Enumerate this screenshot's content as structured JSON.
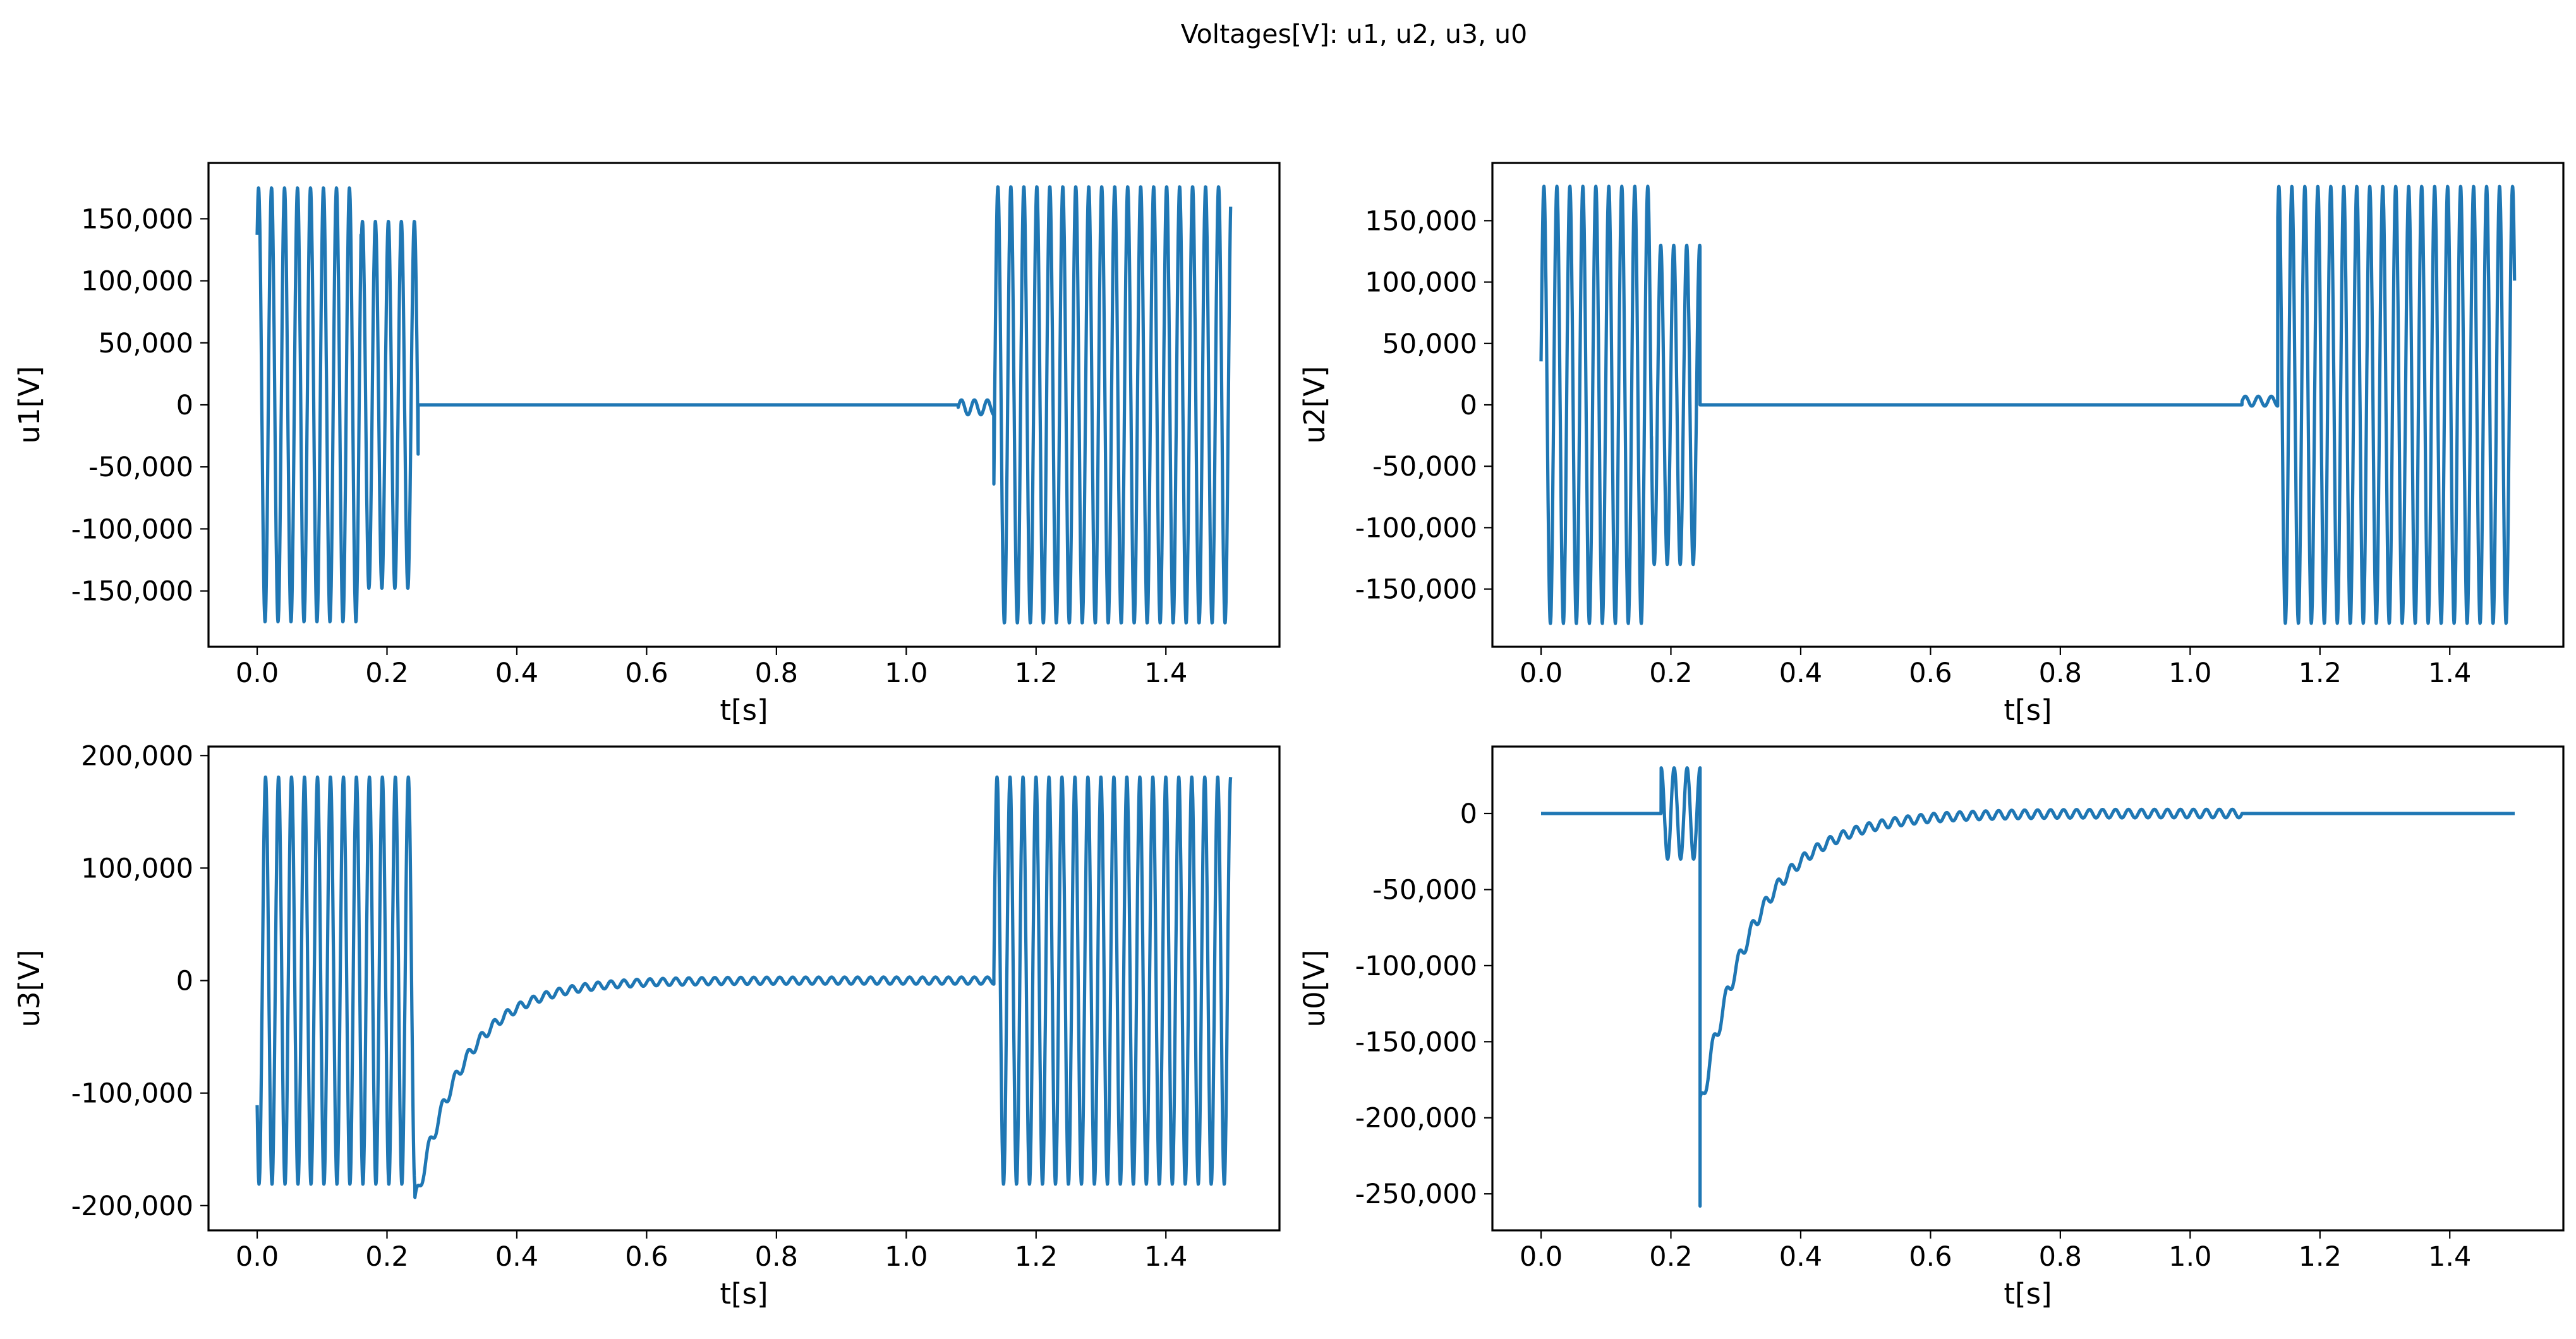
{
  "figure": {
    "suptitle": "Voltages[V]: u1, u2, u3, u0",
    "line_color": "#1f77b4"
  },
  "chart_data": [
    {
      "type": "line",
      "id": "u1",
      "xlabel": "t[s]",
      "ylabel": "u1[V]",
      "xlim": [
        -0.075,
        1.575
      ],
      "ylim": [
        -195000,
        195000
      ],
      "xticks": [
        0.0,
        0.2,
        0.4,
        0.6,
        0.8,
        1.0,
        1.2,
        1.4
      ],
      "xtick_labels": [
        "0.0",
        "0.2",
        "0.4",
        "0.6",
        "0.8",
        "1.0",
        "1.2",
        "1.4"
      ],
      "yticks": [
        150000,
        100000,
        50000,
        0,
        -50000,
        -100000,
        -150000
      ],
      "ytick_labels": [
        "150,000",
        "100,000",
        "50,000",
        "0",
        "-50,000",
        "-100,000",
        "-150,000"
      ],
      "series": [
        {
          "name": "u1",
          "segments": [
            {
              "kind": "sine",
              "t0": 0.0,
              "t1": 0.16,
              "amp": 175000,
              "freq": 50,
              "phase": 0.9,
              "center": 0
            },
            {
              "kind": "sine",
              "t0": 0.16,
              "t1": 0.248,
              "amp": 148000,
              "freq": 50,
              "phase": 0.9,
              "center": 0
            },
            {
              "kind": "const",
              "t0": 0.248,
              "t1": 1.08,
              "value": 0
            },
            {
              "kind": "sine",
              "t0": 1.08,
              "t1": 1.135,
              "amp": 6000,
              "freq": 50,
              "phase": 0.0,
              "center": -2000
            },
            {
              "kind": "sine",
              "t0": 1.135,
              "t1": 1.5,
              "amp": 176000,
              "freq": 50,
              "phase": 1.2,
              "center": 0
            }
          ]
        }
      ]
    },
    {
      "type": "line",
      "id": "u2",
      "xlabel": "t[s]",
      "ylabel": "u2[V]",
      "xlim": [
        -0.075,
        1.575
      ],
      "ylim": [
        -197000,
        197000
      ],
      "xticks": [
        0.0,
        0.2,
        0.4,
        0.6,
        0.8,
        1.0,
        1.2,
        1.4
      ],
      "xtick_labels": [
        "0.0",
        "0.2",
        "0.4",
        "0.6",
        "0.8",
        "1.0",
        "1.2",
        "1.4"
      ],
      "yticks": [
        150000,
        100000,
        50000,
        0,
        -50000,
        -100000,
        -150000
      ],
      "ytick_labels": [
        "150,000",
        "100,000",
        "50,000",
        "0",
        "-50,000",
        "-100,000",
        "-150,000"
      ],
      "series": [
        {
          "name": "u2",
          "segments": [
            {
              "kind": "sine",
              "t0": 0.0,
              "t1": 0.17,
              "amp": 178000,
              "freq": 50,
              "phase": 0.2,
              "center": 0
            },
            {
              "kind": "sine",
              "t0": 0.17,
              "t1": 0.245,
              "amp": 130000,
              "freq": 50,
              "phase": 0.2,
              "center": 0
            },
            {
              "kind": "const",
              "t0": 0.245,
              "t1": 1.08,
              "value": 0
            },
            {
              "kind": "sine",
              "t0": 1.08,
              "t1": 1.135,
              "amp": 4000,
              "freq": 50,
              "phase": 0.0,
              "center": 3000
            },
            {
              "kind": "sine",
              "t0": 1.135,
              "t1": 1.5,
              "amp": 178000,
              "freq": 50,
              "phase": 2.6,
              "center": 0
            }
          ]
        }
      ]
    },
    {
      "type": "line",
      "id": "u3",
      "xlabel": "t[s]",
      "ylabel": "u3[V]",
      "xlim": [
        -0.075,
        1.575
      ],
      "ylim": [
        -222000,
        208000
      ],
      "xticks": [
        0.0,
        0.2,
        0.4,
        0.6,
        0.8,
        1.0,
        1.2,
        1.4
      ],
      "xtick_labels": [
        "0.0",
        "0.2",
        "0.4",
        "0.6",
        "0.8",
        "1.0",
        "1.2",
        "1.4"
      ],
      "yticks": [
        200000,
        100000,
        0,
        -100000,
        -200000
      ],
      "ytick_labels": [
        "200,000",
        "100,000",
        "0",
        "-100,000",
        "-200,000"
      ],
      "series": [
        {
          "name": "u3",
          "segments": [
            {
              "kind": "sine",
              "t0": 0.0,
              "t1": 0.243,
              "amp": 181000,
              "freq": 50,
              "phase": 3.8,
              "center": 0
            },
            {
              "kind": "decay",
              "t0": 0.243,
              "t1": 1.135,
              "start": -200000,
              "tau": 0.075,
              "ripple": 9000,
              "freq": 50
            },
            {
              "kind": "sine",
              "t0": 1.135,
              "t1": 1.5,
              "amp": 181000,
              "freq": 50,
              "phase": 1.6,
              "center": 0
            }
          ]
        }
      ]
    },
    {
      "type": "line",
      "id": "u0",
      "xlabel": "t[s]",
      "ylabel": "u0[V]",
      "xlim": [
        -0.075,
        1.575
      ],
      "ylim": [
        -274000,
        44000
      ],
      "xticks": [
        0.0,
        0.2,
        0.4,
        0.6,
        0.8,
        1.0,
        1.2,
        1.4
      ],
      "xtick_labels": [
        "0.0",
        "0.2",
        "0.4",
        "0.6",
        "0.8",
        "1.0",
        "1.2",
        "1.4"
      ],
      "yticks": [
        0,
        -50000,
        -100000,
        -150000,
        -200000,
        -250000
      ],
      "ytick_labels": [
        "0",
        "-50,000",
        "-100,000",
        "-150,000",
        "-200,000",
        "-250,000"
      ],
      "series": [
        {
          "name": "u0",
          "segments": [
            {
              "kind": "const",
              "t0": 0.0,
              "t1": 0.185,
              "value": 0
            },
            {
              "kind": "sine",
              "t0": 0.185,
              "t1": 0.245,
              "amp": 30000,
              "freq": 50,
              "phase": 0.0,
              "center": 0
            },
            {
              "kind": "point",
              "t": 0.245,
              "value": -258000
            },
            {
              "kind": "decay",
              "t0": 0.245,
              "t1": 1.08,
              "start": -195000,
              "tau": 0.085,
              "ripple": 8000,
              "freq": 50
            },
            {
              "kind": "const",
              "t0": 1.08,
              "t1": 1.5,
              "value": 0
            }
          ]
        }
      ]
    }
  ]
}
